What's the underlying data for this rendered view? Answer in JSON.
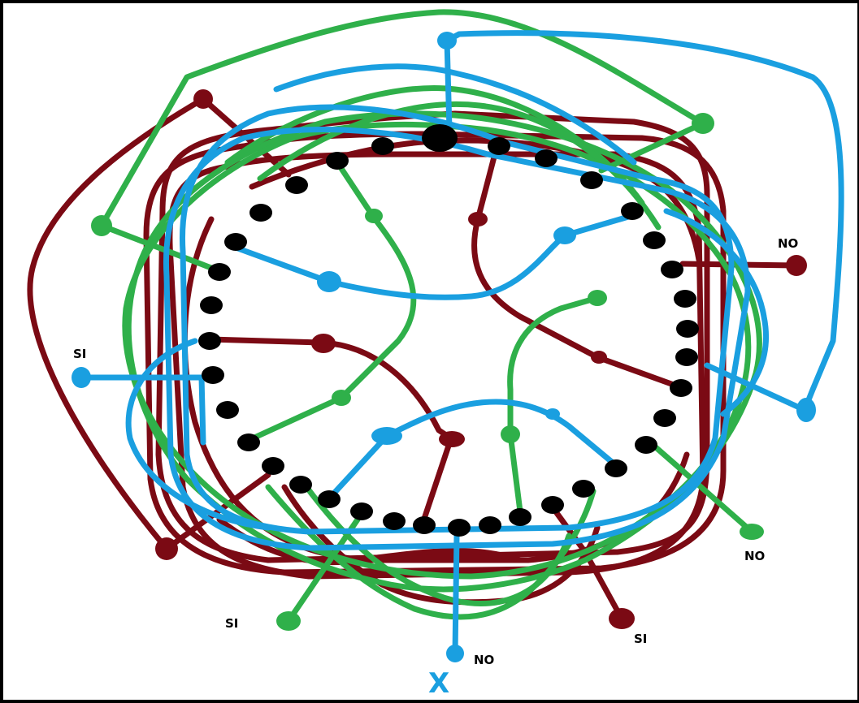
{
  "colors": {
    "red": "#7b0a14",
    "green": "#2fb04a",
    "blue": "#1a9fe0",
    "slot": "#000000"
  },
  "labels": {
    "si_blue": "SI",
    "no_red": "NO",
    "si_green": "SI",
    "no_blue": "NO",
    "si_red": "SI",
    "no_green": "NO",
    "x_mark": "X"
  }
}
